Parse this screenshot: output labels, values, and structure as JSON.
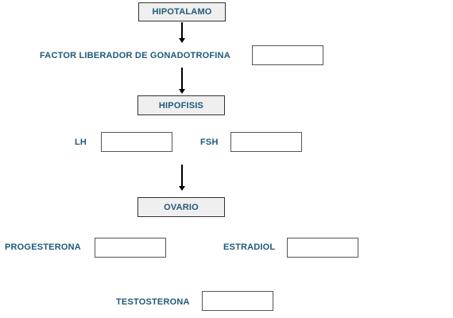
{
  "nodes": {
    "hipotalamo": "HIPOTALAMO",
    "hipofisis": "HIPOFISIS",
    "ovario": "OVARIO"
  },
  "labels": {
    "factor_liberador": "FACTOR LIBERADOR DE GONADOTROFINA",
    "lh": "LH",
    "fsh": "FSH",
    "progesterona": "PROGESTERONA",
    "estradiol": "ESTRADIOL",
    "testosterona": "TESTOSTERONA"
  },
  "inputs": {
    "factor_liberador": "",
    "lh": "",
    "fsh": "",
    "progesterona": "",
    "estradiol": "",
    "testosterona": ""
  },
  "colors": {
    "label_text": "#1f5a78",
    "node_fill": "#efefef",
    "border": "#333333"
  }
}
